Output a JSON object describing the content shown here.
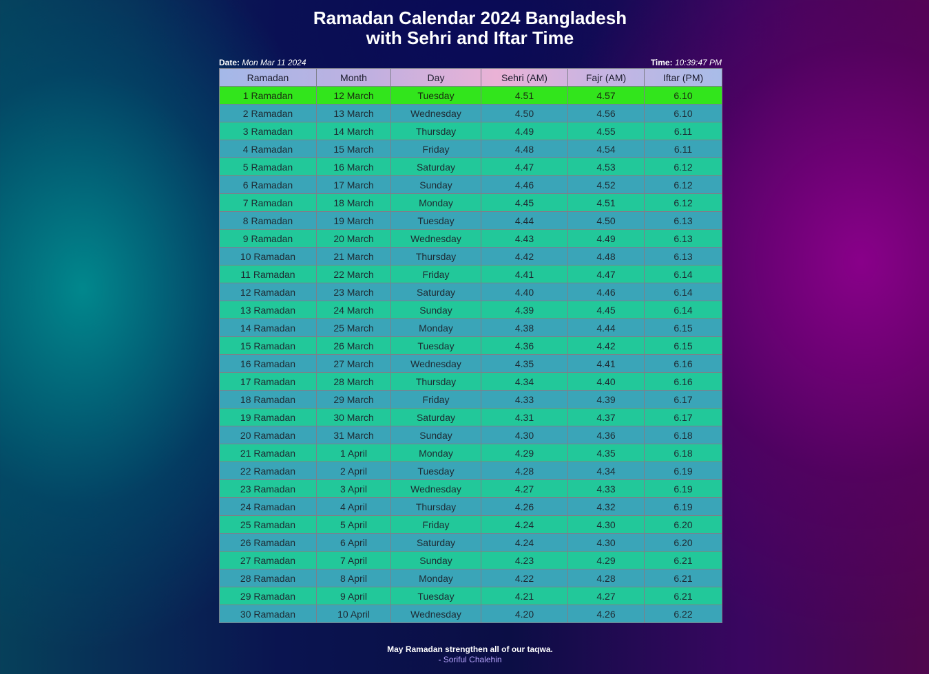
{
  "title": {
    "line1": "Ramadan Calendar 2024 Bangladesh",
    "line2": "with Sehri and Iftar Time"
  },
  "meta": {
    "date_label": "Date:",
    "date_value": "Mon Mar 11 2024",
    "time_label": "Time:",
    "time_value": "10:39:47 PM"
  },
  "table": {
    "headers": [
      "Ramadan",
      "Month",
      "Day",
      "Sehri (AM)",
      "Fajr (AM)",
      "Iftar (PM)"
    ],
    "rows": [
      [
        "1 Ramadan",
        "12 March",
        "Tuesday",
        "4.51",
        "4.57",
        "6.10"
      ],
      [
        "2 Ramadan",
        "13 March",
        "Wednesday",
        "4.50",
        "4.56",
        "6.10"
      ],
      [
        "3 Ramadan",
        "14 March",
        "Thursday",
        "4.49",
        "4.55",
        "6.11"
      ],
      [
        "4 Ramadan",
        "15 March",
        "Friday",
        "4.48",
        "4.54",
        "6.11"
      ],
      [
        "5 Ramadan",
        "16 March",
        "Saturday",
        "4.47",
        "4.53",
        "6.12"
      ],
      [
        "6 Ramadan",
        "17 March",
        "Sunday",
        "4.46",
        "4.52",
        "6.12"
      ],
      [
        "7 Ramadan",
        "18 March",
        "Monday",
        "4.45",
        "4.51",
        "6.12"
      ],
      [
        "8 Ramadan",
        "19 March",
        "Tuesday",
        "4.44",
        "4.50",
        "6.13"
      ],
      [
        "9 Ramadan",
        "20 March",
        "Wednesday",
        "4.43",
        "4.49",
        "6.13"
      ],
      [
        "10 Ramadan",
        "21 March",
        "Thursday",
        "4.42",
        "4.48",
        "6.13"
      ],
      [
        "11 Ramadan",
        "22 March",
        "Friday",
        "4.41",
        "4.47",
        "6.14"
      ],
      [
        "12 Ramadan",
        "23 March",
        "Saturday",
        "4.40",
        "4.46",
        "6.14"
      ],
      [
        "13 Ramadan",
        "24 March",
        "Sunday",
        "4.39",
        "4.45",
        "6.14"
      ],
      [
        "14 Ramadan",
        "25 March",
        "Monday",
        "4.38",
        "4.44",
        "6.15"
      ],
      [
        "15 Ramadan",
        "26 March",
        "Tuesday",
        "4.36",
        "4.42",
        "6.15"
      ],
      [
        "16 Ramadan",
        "27 March",
        "Wednesday",
        "4.35",
        "4.41",
        "6.16"
      ],
      [
        "17 Ramadan",
        "28 March",
        "Thursday",
        "4.34",
        "4.40",
        "6.16"
      ],
      [
        "18 Ramadan",
        "29 March",
        "Friday",
        "4.33",
        "4.39",
        "6.17"
      ],
      [
        "19 Ramadan",
        "30 March",
        "Saturday",
        "4.31",
        "4.37",
        "6.17"
      ],
      [
        "20 Ramadan",
        "31 March",
        "Sunday",
        "4.30",
        "4.36",
        "6.18"
      ],
      [
        "21 Ramadan",
        "1 April",
        "Monday",
        "4.29",
        "4.35",
        "6.18"
      ],
      [
        "22 Ramadan",
        "2 April",
        "Tuesday",
        "4.28",
        "4.34",
        "6.19"
      ],
      [
        "23 Ramadan",
        "3 April",
        "Wednesday",
        "4.27",
        "4.33",
        "6.19"
      ],
      [
        "24 Ramadan",
        "4 April",
        "Thursday",
        "4.26",
        "4.32",
        "6.19"
      ],
      [
        "25 Ramadan",
        "5 April",
        "Friday",
        "4.24",
        "4.30",
        "6.20"
      ],
      [
        "26 Ramadan",
        "6 April",
        "Saturday",
        "4.24",
        "4.30",
        "6.20"
      ],
      [
        "27 Ramadan",
        "7 April",
        "Sunday",
        "4.23",
        "4.29",
        "6.21"
      ],
      [
        "28 Ramadan",
        "8 April",
        "Monday",
        "4.22",
        "4.28",
        "6.21"
      ],
      [
        "29 Ramadan",
        "9 April",
        "Tuesday",
        "4.21",
        "4.27",
        "6.21"
      ],
      [
        "30 Ramadan",
        "10 April",
        "Wednesday",
        "4.20",
        "4.26",
        "6.22"
      ]
    ],
    "highlight_row": 0
  },
  "colors": {
    "highlight_row": "#32e51c",
    "row_odd": "#22c89a",
    "row_even": "#3aa5b8",
    "author": "#b9a6ff"
  },
  "footer": {
    "quote": "May Ramadan strengthen all of our taqwa.",
    "author": "- Soriful Chalehin"
  }
}
